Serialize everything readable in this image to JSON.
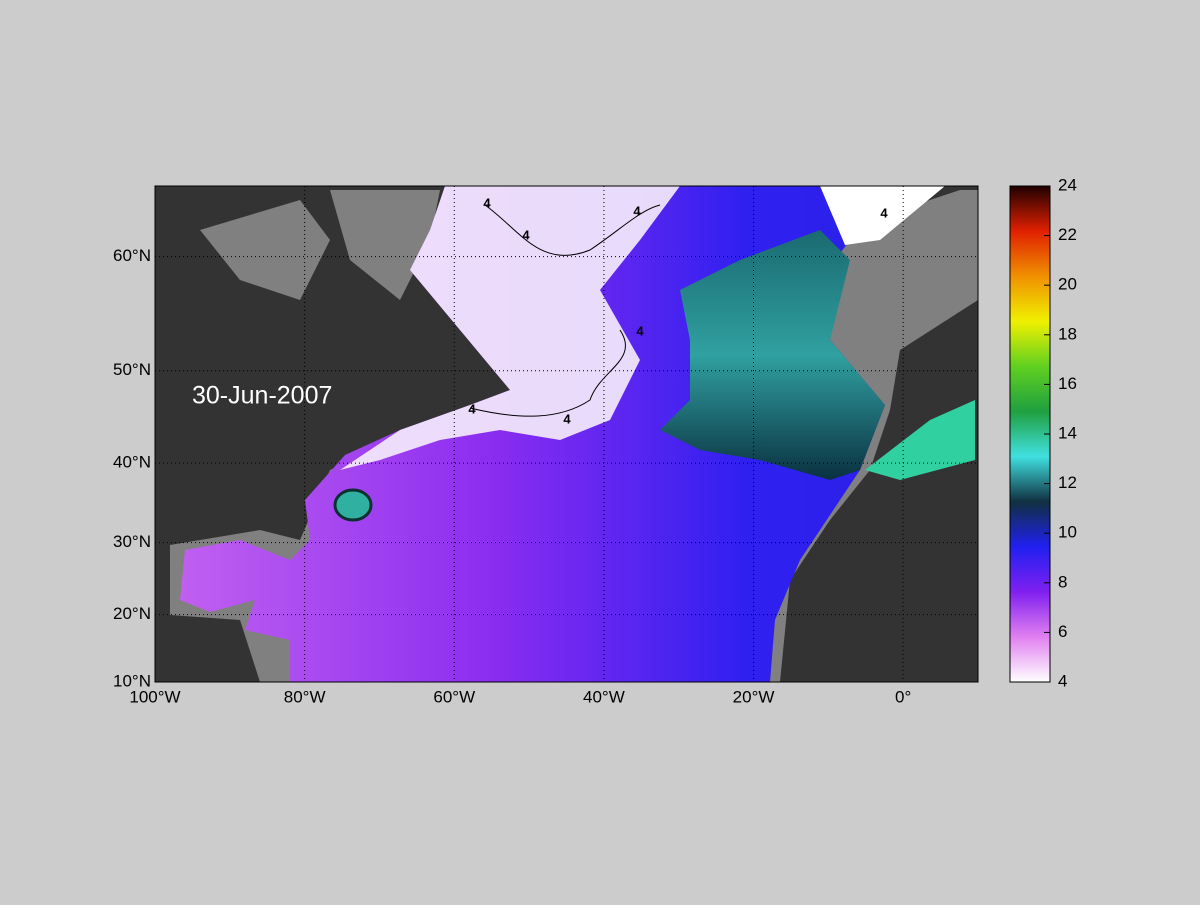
{
  "map": {
    "title": "30-Jun-2007",
    "projection": "mercator",
    "lonlim": [
      -100,
      10
    ],
    "latlim": [
      10,
      65
    ],
    "lonticks": [
      {
        "value": -100,
        "label": "100°W"
      },
      {
        "value": -80,
        "label": "80°W"
      },
      {
        "value": -60,
        "label": "60°W"
      },
      {
        "value": -40,
        "label": "40°W"
      },
      {
        "value": -20,
        "label": "20°W"
      },
      {
        "value": 0,
        "label": "0°"
      }
    ],
    "latticks": [
      {
        "value": 10,
        "label": "10°N"
      },
      {
        "value": 20,
        "label": "20°N"
      },
      {
        "value": 30,
        "label": "30°N"
      },
      {
        "value": 40,
        "label": "40°N"
      },
      {
        "value": 50,
        "label": "50°N"
      },
      {
        "value": 60,
        "label": "60°N"
      }
    ],
    "grid": true,
    "contour_labels": [
      4,
      4,
      4,
      4,
      4,
      4,
      4
    ]
  },
  "colorbar": {
    "clim": [
      4,
      24
    ],
    "ticks": [
      4,
      6,
      8,
      10,
      12,
      14,
      16,
      18,
      20,
      22,
      24
    ],
    "colors": [
      "#ffffff",
      "#e080f0",
      "#8020f0",
      "#2020f0",
      "#103040",
      "#40e0e0",
      "#20a040",
      "#60d020",
      "#f0f000",
      "#f09000",
      "#e02000",
      "#200000"
    ]
  }
}
